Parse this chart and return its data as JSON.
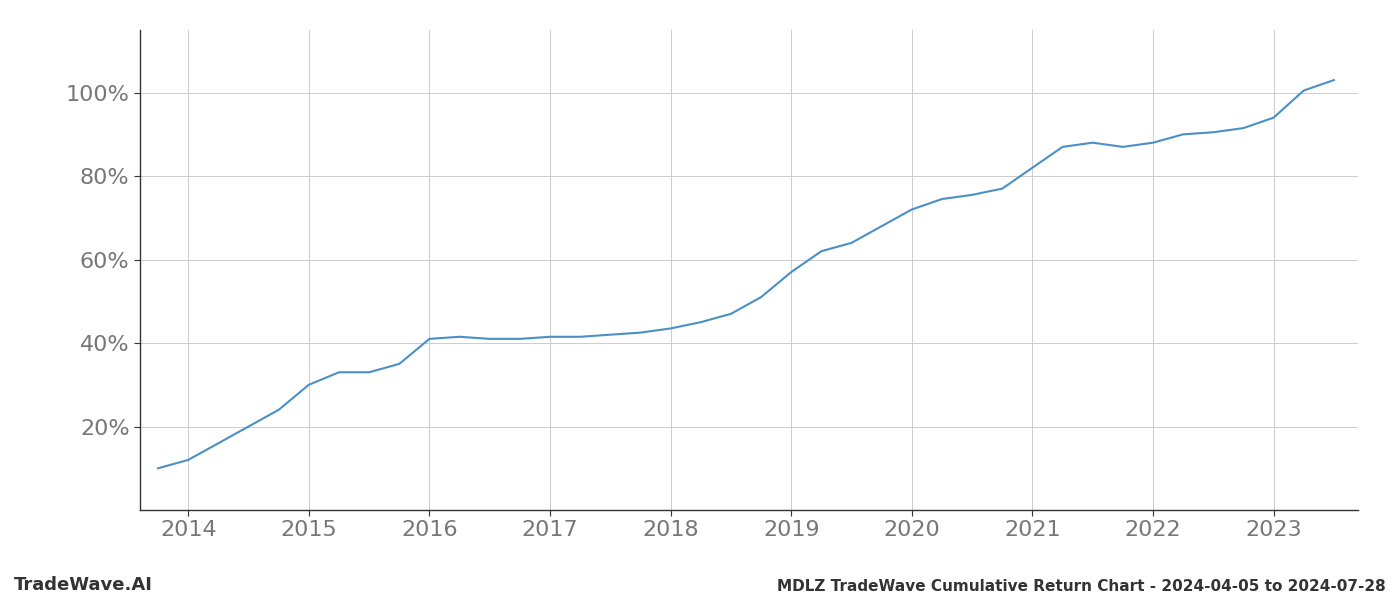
{
  "title": "MDLZ TradeWave Cumulative Return Chart - 2024-04-05 to 2024-07-28",
  "watermark_left": "TradeWave.AI",
  "line_color": "#4a90c4",
  "background_color": "#ffffff",
  "grid_color": "#cccccc",
  "ylabel_color": "#777777",
  "xlabel_color": "#777777",
  "title_color": "#333333",
  "spine_color": "#333333",
  "x_years": [
    2013.75,
    2014.0,
    2014.25,
    2014.5,
    2014.75,
    2015.0,
    2015.25,
    2015.5,
    2015.75,
    2016.0,
    2016.25,
    2016.5,
    2016.75,
    2017.0,
    2017.25,
    2017.5,
    2017.75,
    2018.0,
    2018.25,
    2018.5,
    2018.75,
    2019.0,
    2019.25,
    2019.5,
    2019.75,
    2020.0,
    2020.25,
    2020.5,
    2020.75,
    2021.0,
    2021.25,
    2021.5,
    2021.75,
    2022.0,
    2022.25,
    2022.5,
    2022.75,
    2023.0,
    2023.25,
    2023.5
  ],
  "y_values": [
    10.0,
    12.0,
    16.0,
    20.0,
    24.0,
    30.0,
    33.0,
    33.0,
    35.0,
    41.0,
    41.5,
    41.0,
    41.0,
    41.5,
    41.5,
    42.0,
    42.5,
    43.5,
    45.0,
    47.0,
    51.0,
    57.0,
    62.0,
    64.0,
    68.0,
    72.0,
    74.5,
    75.5,
    77.0,
    82.0,
    87.0,
    88.0,
    87.0,
    88.0,
    90.0,
    90.5,
    91.5,
    94.0,
    100.5,
    103.0
  ],
  "xticks": [
    2014,
    2015,
    2016,
    2017,
    2018,
    2019,
    2020,
    2021,
    2022,
    2023
  ],
  "yticks": [
    20,
    40,
    60,
    80,
    100
  ],
  "ylim": [
    0,
    115
  ],
  "xlim": [
    2013.6,
    2023.7
  ],
  "line_width": 1.5,
  "figsize": [
    14.0,
    6.0
  ],
  "dpi": 100,
  "tick_fontsize": 16,
  "title_fontsize": 11,
  "watermark_fontsize": 13
}
